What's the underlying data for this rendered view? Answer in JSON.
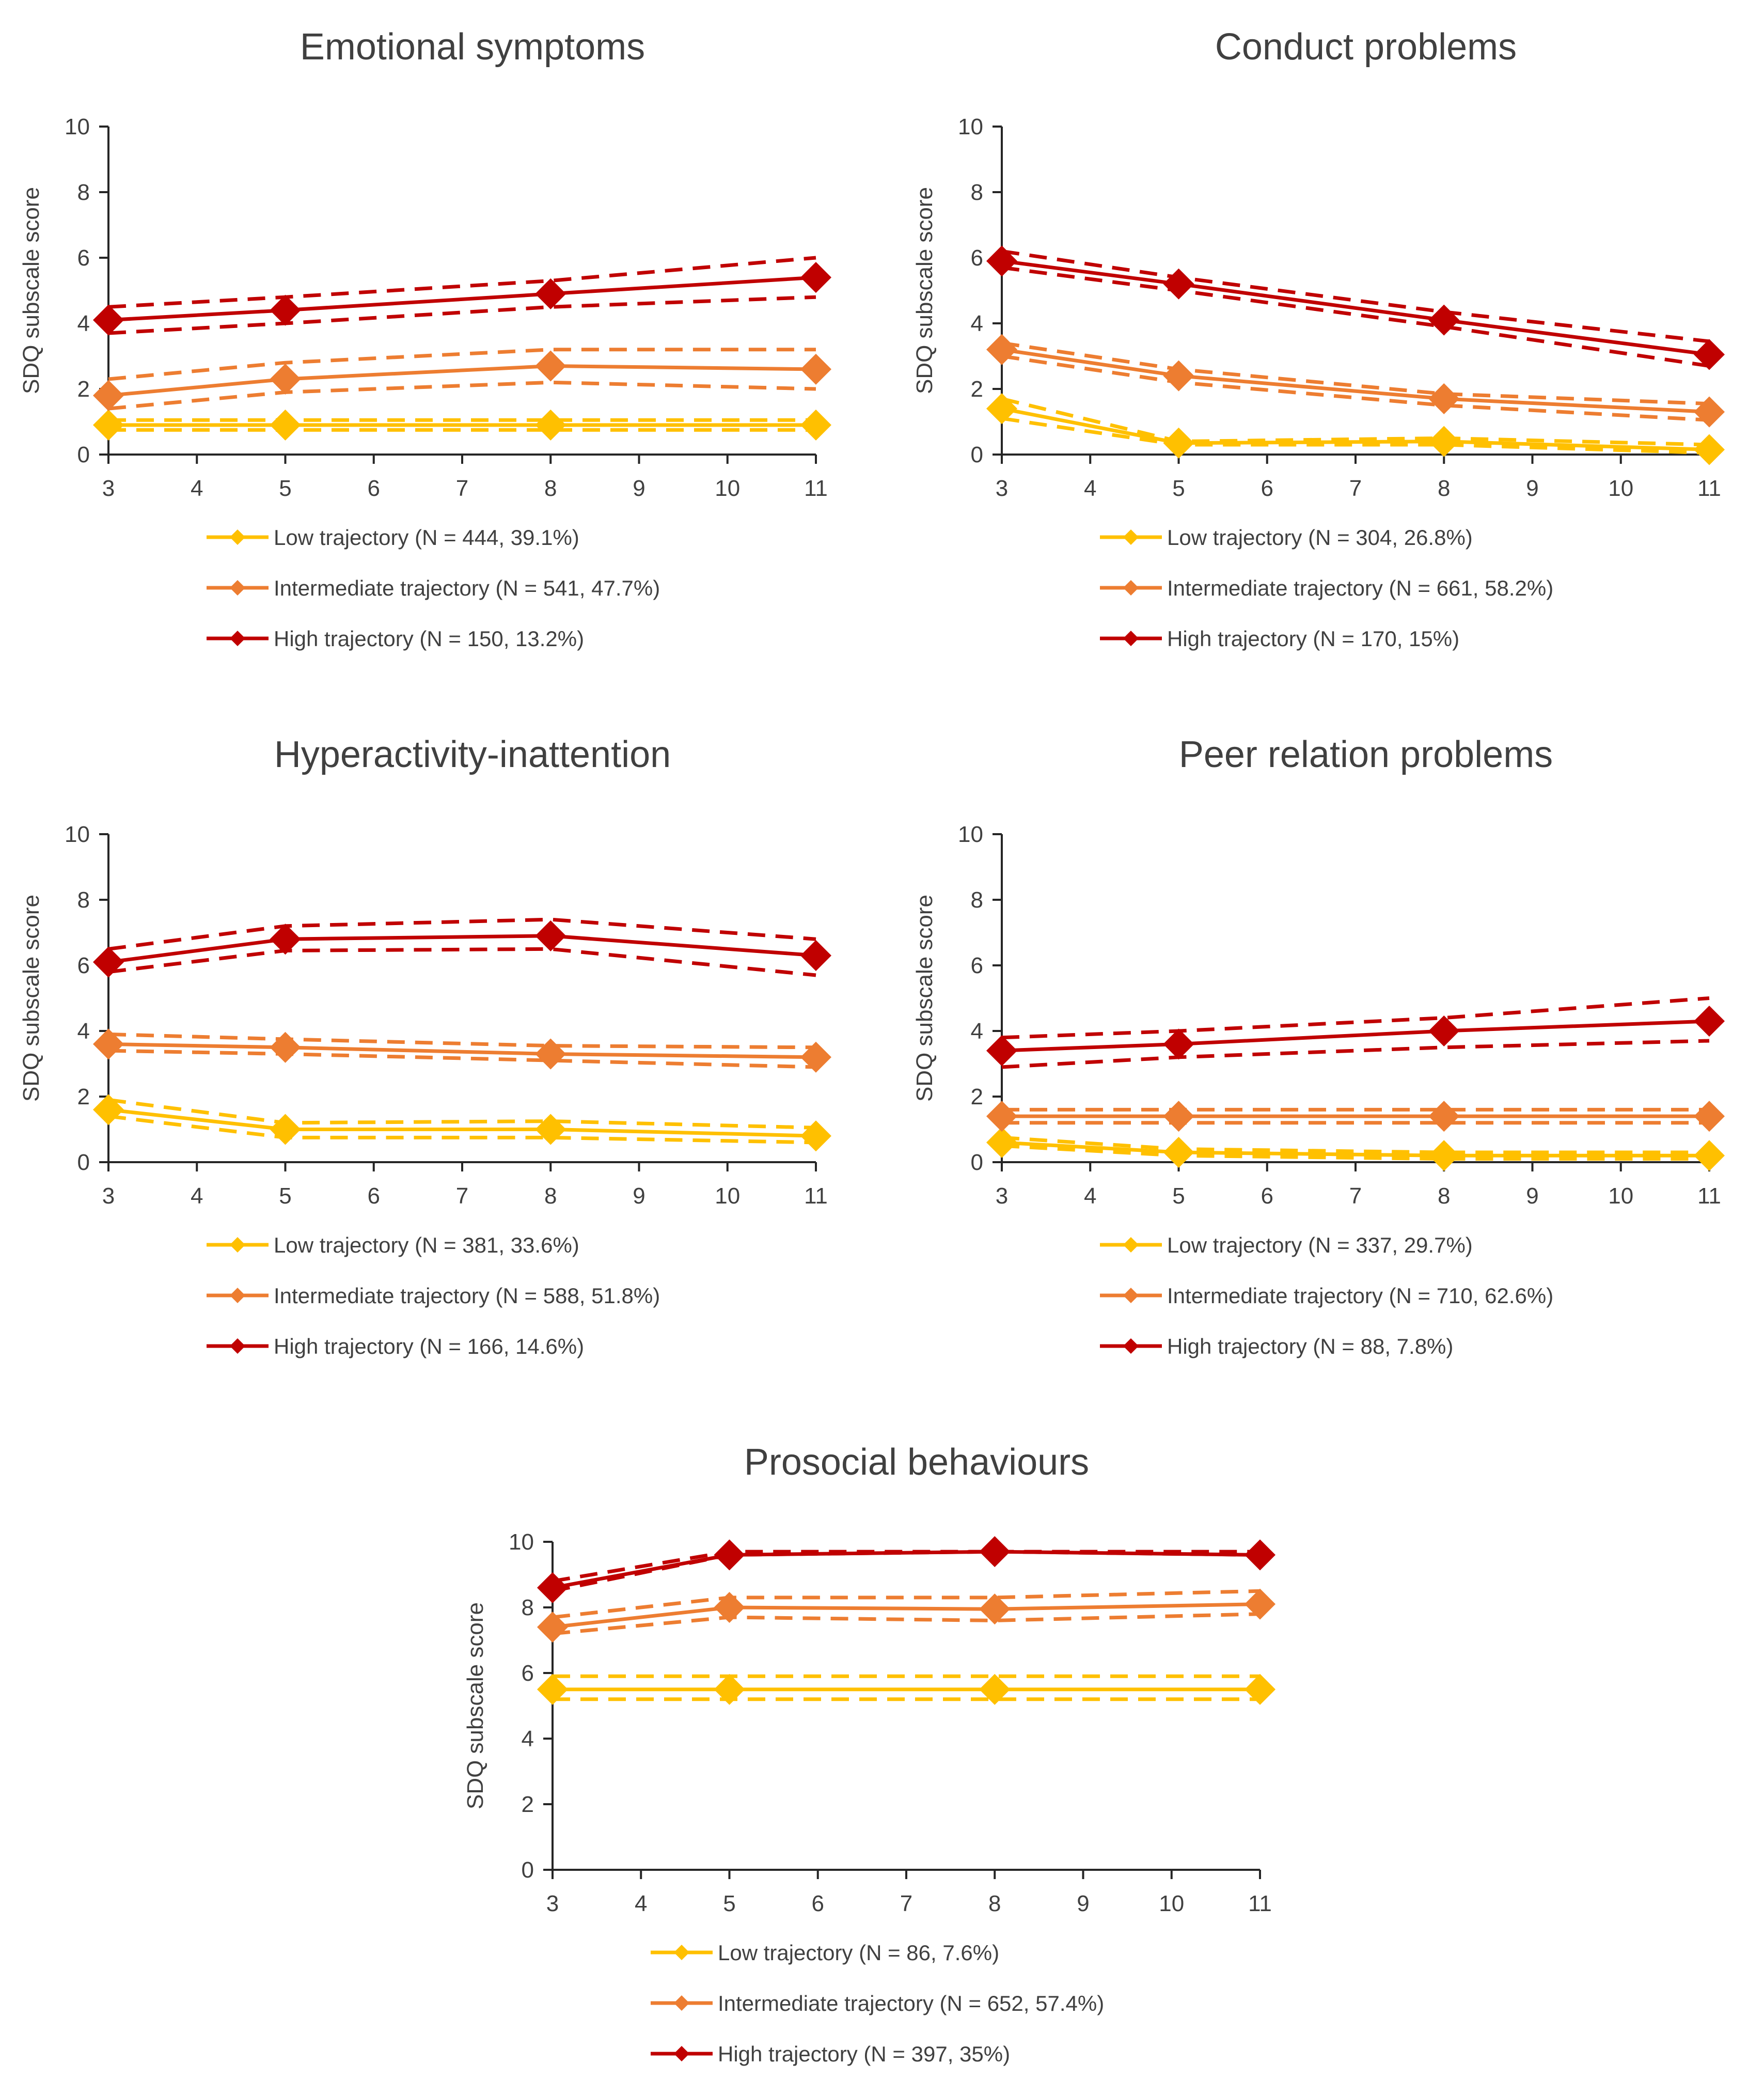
{
  "y_axis_label": "SDQ subscale  score",
  "colors": {
    "low": "#ffc000",
    "intermediate": "#ed7d31",
    "high": "#c00000"
  },
  "chart_data": [
    {
      "id": "emotional",
      "type": "line",
      "title": "Emotional symptoms",
      "ylabel": "SDQ subscale  score",
      "x": [
        3,
        5,
        8,
        11
      ],
      "xlim": [
        3,
        11
      ],
      "xticks": [
        "3",
        "4",
        "5",
        "6",
        "7",
        "8",
        "9",
        "10",
        "11"
      ],
      "ylim": [
        0,
        10
      ],
      "yticks": [
        "0",
        "2",
        "4",
        "6",
        "8",
        "10"
      ],
      "series": [
        {
          "key": "low",
          "name": "Low trajectory (N = 444, 39.1%)",
          "values": [
            0.9,
            0.9,
            0.9,
            0.9
          ],
          "lower": [
            0.75,
            0.75,
            0.75,
            0.75
          ],
          "upper": [
            1.05,
            1.05,
            1.05,
            1.05
          ]
        },
        {
          "key": "intermediate",
          "name": "Intermediate trajectory (N = 541, 47.7%)",
          "values": [
            1.8,
            2.3,
            2.7,
            2.6
          ],
          "lower": [
            1.4,
            1.9,
            2.2,
            2.0
          ],
          "upper": [
            2.3,
            2.8,
            3.2,
            3.2
          ]
        },
        {
          "key": "high",
          "name": "High trajectory (N = 150, 13.2%)",
          "values": [
            4.1,
            4.4,
            4.9,
            5.4
          ],
          "lower": [
            3.7,
            4.0,
            4.5,
            4.8
          ],
          "upper": [
            4.5,
            4.8,
            5.3,
            6.0
          ]
        }
      ]
    },
    {
      "id": "conduct",
      "type": "line",
      "title": "Conduct  problems",
      "ylabel": "SDQ subscale  score",
      "x": [
        3,
        5,
        8,
        11
      ],
      "xlim": [
        3,
        11
      ],
      "xticks": [
        "3",
        "4",
        "5",
        "6",
        "7",
        "8",
        "9",
        "10",
        "11"
      ],
      "ylim": [
        0,
        10
      ],
      "yticks": [
        "0",
        "2",
        "4",
        "6",
        "8",
        "10"
      ],
      "series": [
        {
          "key": "low",
          "name": "Low trajectory (N = 304, 26.8%)",
          "values": [
            1.4,
            0.35,
            0.4,
            0.15
          ],
          "lower": [
            1.1,
            0.3,
            0.3,
            0.05
          ],
          "upper": [
            1.7,
            0.4,
            0.5,
            0.3
          ]
        },
        {
          "key": "intermediate",
          "name": "Intermediate trajectory (N = 661, 58.2%)",
          "values": [
            3.2,
            2.4,
            1.7,
            1.3
          ],
          "lower": [
            3.0,
            2.2,
            1.5,
            1.05
          ],
          "upper": [
            3.4,
            2.6,
            1.85,
            1.55
          ]
        },
        {
          "key": "high",
          "name": "High trajectory (N = 170, 15%)",
          "values": [
            5.9,
            5.2,
            4.1,
            3.05
          ],
          "lower": [
            5.7,
            5.0,
            3.9,
            2.7
          ],
          "upper": [
            6.2,
            5.4,
            4.35,
            3.45
          ]
        }
      ]
    },
    {
      "id": "hyperactivity",
      "type": "line",
      "title": "Hyperactivity-inattention",
      "ylabel": "SDQ subscale  score",
      "x": [
        3,
        5,
        8,
        11
      ],
      "xlim": [
        3,
        11
      ],
      "xticks": [
        "3",
        "4",
        "5",
        "6",
        "7",
        "8",
        "9",
        "10",
        "11"
      ],
      "ylim": [
        0,
        10
      ],
      "yticks": [
        "0",
        "2",
        "4",
        "6",
        "8",
        "10"
      ],
      "series": [
        {
          "key": "low",
          "name": "Low trajectory (N = 381, 33.6%)",
          "values": [
            1.6,
            1.0,
            1.0,
            0.8
          ],
          "lower": [
            1.4,
            0.75,
            0.75,
            0.6
          ],
          "upper": [
            1.9,
            1.2,
            1.25,
            1.05
          ]
        },
        {
          "key": "intermediate",
          "name": "Intermediate trajectory (N = 588, 51.8%)",
          "values": [
            3.6,
            3.5,
            3.3,
            3.2
          ],
          "lower": [
            3.4,
            3.3,
            3.1,
            2.9
          ],
          "upper": [
            3.9,
            3.75,
            3.55,
            3.5
          ]
        },
        {
          "key": "high",
          "name": "High trajectory (N = 166, 14.6%)",
          "values": [
            6.1,
            6.8,
            6.9,
            6.3
          ],
          "lower": [
            5.8,
            6.45,
            6.5,
            5.7
          ],
          "upper": [
            6.5,
            7.2,
            7.4,
            6.8
          ]
        }
      ]
    },
    {
      "id": "peer",
      "type": "line",
      "title": "Peer relation problems",
      "ylabel": "SDQ subscale  score",
      "x": [
        3,
        5,
        8,
        11
      ],
      "xlim": [
        3,
        11
      ],
      "xticks": [
        "3",
        "4",
        "5",
        "6",
        "7",
        "8",
        "9",
        "10",
        "11"
      ],
      "ylim": [
        0,
        10
      ],
      "yticks": [
        "0",
        "2",
        "4",
        "6",
        "8",
        "10"
      ],
      "series": [
        {
          "key": "low",
          "name": "Low trajectory (N = 337, 29.7%)",
          "values": [
            0.6,
            0.3,
            0.2,
            0.2
          ],
          "lower": [
            0.5,
            0.2,
            0.1,
            0.1
          ],
          "upper": [
            0.75,
            0.4,
            0.3,
            0.3
          ]
        },
        {
          "key": "intermediate",
          "name": "Intermediate trajectory (N = 710, 62.6%)",
          "values": [
            1.4,
            1.4,
            1.4,
            1.4
          ],
          "lower": [
            1.2,
            1.2,
            1.2,
            1.2
          ],
          "upper": [
            1.6,
            1.6,
            1.6,
            1.6
          ]
        },
        {
          "key": "high",
          "name": "High trajectory (N = 88, 7.8%)",
          "values": [
            3.4,
            3.6,
            4.0,
            4.3
          ],
          "lower": [
            2.9,
            3.2,
            3.5,
            3.7
          ],
          "upper": [
            3.8,
            4.0,
            4.4,
            5.0
          ]
        }
      ]
    },
    {
      "id": "prosocial",
      "type": "line",
      "title": "Prosocial behaviours",
      "ylabel": "SDQ subscale  score",
      "x": [
        3,
        5,
        8,
        11
      ],
      "xlim": [
        3,
        11
      ],
      "xticks": [
        "3",
        "4",
        "5",
        "6",
        "7",
        "8",
        "9",
        "10",
        "11"
      ],
      "ylim": [
        0,
        10
      ],
      "yticks": [
        "0",
        "2",
        "4",
        "6",
        "8",
        "10"
      ],
      "series": [
        {
          "key": "low",
          "name": "Low trajectory (N = 86, 7.6%)",
          "values": [
            5.5,
            5.5,
            5.5,
            5.5
          ],
          "lower": [
            5.2,
            5.2,
            5.2,
            5.2
          ],
          "upper": [
            5.9,
            5.9,
            5.9,
            5.9
          ]
        },
        {
          "key": "intermediate",
          "name": "Intermediate trajectory (N = 652, 57.4%)",
          "values": [
            7.4,
            8.0,
            7.95,
            8.1
          ],
          "lower": [
            7.2,
            7.7,
            7.6,
            7.8
          ],
          "upper": [
            7.7,
            8.3,
            8.3,
            8.5
          ]
        },
        {
          "key": "high",
          "name": "High trajectory (N = 397, 35%)",
          "values": [
            8.6,
            9.6,
            9.7,
            9.6
          ],
          "lower": [
            8.5,
            9.6,
            9.7,
            9.6
          ],
          "upper": [
            8.8,
            9.7,
            9.7,
            9.7
          ]
        }
      ]
    }
  ]
}
